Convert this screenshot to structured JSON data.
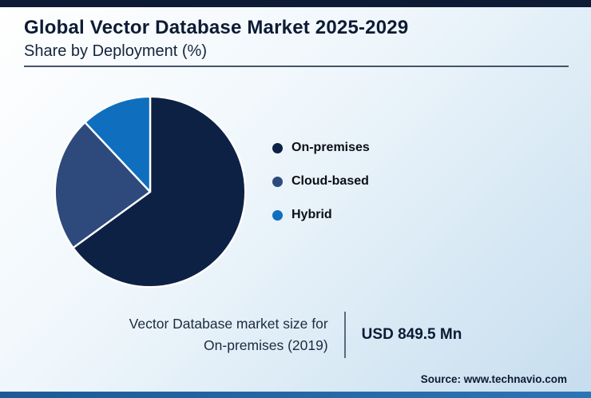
{
  "header": {
    "title": "Global Vector Database Market 2025-2029",
    "subtitle": "Share by Deployment (%)"
  },
  "chart_data": {
    "type": "pie",
    "title": "Global Vector Database Market 2025-2029",
    "subtitle": "Share by Deployment (%)",
    "categories": [
      "On-premises",
      "Cloud-based",
      "Hybrid"
    ],
    "values": [
      65,
      23,
      12
    ],
    "unit": "%",
    "colors": [
      "#0d2145",
      "#2e4a7d",
      "#0f6fbe"
    ],
    "legend_position": "right",
    "start_angle_deg": 0,
    "direction": "clockwise",
    "note": "values estimated from slice angles; no data labels shown"
  },
  "legend": {
    "items": [
      {
        "label": "On-premises",
        "color": "#0d2145"
      },
      {
        "label": "Cloud-based",
        "color": "#2e4a7d"
      },
      {
        "label": "Hybrid",
        "color": "#0f6fbe"
      }
    ]
  },
  "footer": {
    "caption_line1": "Vector Database market size for",
    "caption_line2": "On-premises (2019)",
    "value": "USD 849.5 Mn",
    "source": "Source: www.technavio.com"
  },
  "colors": {
    "accent_dark": "#0d1b35",
    "top_bar": "#0d1b35",
    "bottom_bar_start": "#1d5a96",
    "bottom_bar_end": "#2d74b5",
    "divider": "#44546a"
  }
}
